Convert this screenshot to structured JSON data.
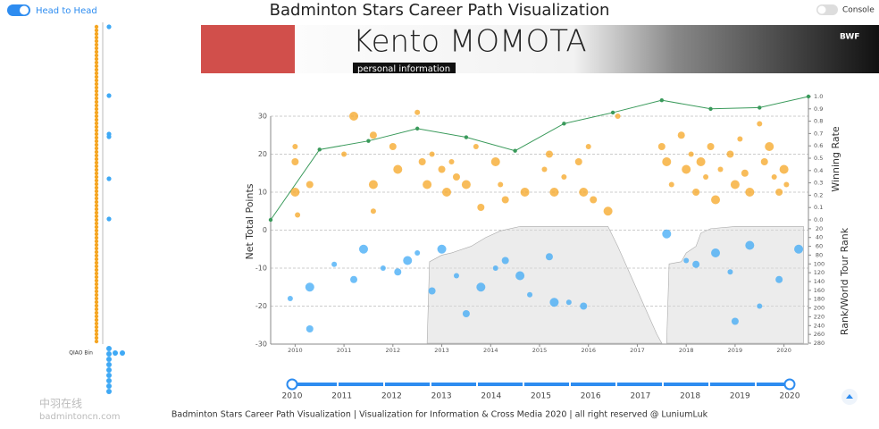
{
  "header": {
    "toggle_left": "Head to Head",
    "title": "Badminton Stars Career Path Visualization",
    "toggle_right": "Console"
  },
  "banner": {
    "name": "Kento MOMOTA",
    "tab": "personal information",
    "logo": "BWF"
  },
  "sidebar": {
    "selected": "QIAO Bin"
  },
  "chart_data": {
    "type": "scatter",
    "ylabel": "Net Total Points",
    "y2label": "Winning Rate",
    "y3label": "Rank/World Tour Rank",
    "xlim": [
      2009.5,
      2020.5
    ],
    "xticks": [
      2010,
      2011,
      2012,
      2013,
      2014,
      2015,
      2016,
      2017,
      2018,
      2019,
      2020
    ],
    "ylim": [
      -30,
      30
    ],
    "yticks": [
      -30,
      -20,
      -10,
      0,
      10,
      20,
      30
    ],
    "y2lim": [
      0,
      1
    ],
    "y2ticks": [
      {
        "value": 0,
        "label": "0.0"
      },
      {
        "value": 0.1,
        "label": "0.1"
      },
      {
        "value": 0.2,
        "label": "0.2"
      },
      {
        "value": 0.3,
        "label": "0.3"
      },
      {
        "value": 0.4,
        "label": "0.4"
      },
      {
        "value": 0.5,
        "label": "0.5"
      },
      {
        "value": 0.6,
        "label": "0.6"
      },
      {
        "value": 0.7,
        "label": "0.7"
      },
      {
        "value": 0.8,
        "label": "0.8"
      },
      {
        "value": 0.9,
        "label": "0.9"
      },
      {
        "value": 1,
        "label": "1.0"
      }
    ],
    "y3lim": [
      0,
      280
    ],
    "y3ticks": [
      20,
      40,
      60,
      80,
      100,
      120,
      140,
      160,
      180,
      200,
      220,
      240,
      260,
      280
    ],
    "grid": true,
    "series": [
      {
        "type": "scatter",
        "color": "#f5a623",
        "x": [
          2010.0,
          2010.0,
          2010.0,
          2010.05,
          2010.3,
          2011.2,
          2011.0,
          2011.6,
          2011.6,
          2011.6,
          2012.0,
          2012.1,
          2012.5,
          2012.6,
          2012.7,
          2012.8,
          2013.0,
          2013.1,
          2013.2,
          2013.3,
          2013.5,
          2013.7,
          2013.8,
          2014.1,
          2014.2,
          2014.3,
          2014.7,
          2015.1,
          2015.2,
          2015.3,
          2015.5,
          2015.8,
          2015.9,
          2016.0,
          2016.1,
          2016.4,
          2016.6,
          2017.5,
          2017.6,
          2017.7,
          2017.9,
          2018.0,
          2018.1,
          2018.2,
          2018.3,
          2018.4,
          2018.5,
          2018.6,
          2018.7,
          2018.9,
          2019.0,
          2019.1,
          2019.2,
          2019.3,
          2019.5,
          2019.6,
          2019.7,
          2019.8,
          2019.9,
          2020.0,
          2020.05
        ],
        "values": [
          22,
          18,
          10,
          4,
          12,
          30,
          20,
          25,
          12,
          5,
          22,
          16,
          31,
          18,
          12,
          20,
          16,
          10,
          18,
          14,
          12,
          22,
          6,
          18,
          12,
          8,
          10,
          16,
          20,
          10,
          14,
          18,
          10,
          22,
          8,
          5,
          30,
          22,
          18,
          12,
          25,
          16,
          20,
          10,
          18,
          14,
          22,
          8,
          16,
          20,
          12,
          24,
          15,
          10,
          28,
          18,
          22,
          14,
          10,
          16,
          12
        ]
      },
      {
        "type": "scatter",
        "color": "#3fa9f5",
        "x": [
          2009.9,
          2010.3,
          2010.3,
          2010.8,
          2011.2,
          2011.4,
          2011.8,
          2012.1,
          2012.3,
          2012.5,
          2012.8,
          2013.0,
          2013.3,
          2013.5,
          2013.8,
          2014.1,
          2014.3,
          2014.6,
          2014.8,
          2015.2,
          2015.3,
          2015.6,
          2015.9,
          2017.6,
          2018.0,
          2018.2,
          2018.6,
          2018.9,
          2019.0,
          2019.3,
          2019.5,
          2019.9,
          2020.3
        ],
        "values": [
          -18,
          -26,
          -15,
          -9,
          -13,
          -5,
          -10,
          -11,
          -8,
          -6,
          -16,
          -5,
          -12,
          -22,
          -15,
          -10,
          -8,
          -12,
          -17,
          -7,
          -19,
          -19,
          -20,
          -1,
          -8,
          -9,
          -6,
          -11,
          -24,
          -4,
          -20,
          -13,
          -5
        ]
      },
      {
        "type": "line",
        "axis": "y2",
        "color": "#3a9a5b",
        "x": [
          2009.5,
          2010.5,
          2011.5,
          2012.5,
          2013.5,
          2014.5,
          2015.5,
          2016.5,
          2017.5,
          2018.5,
          2019.5,
          2020.5
        ],
        "values": [
          0,
          0.57,
          0.64,
          0.74,
          0.67,
          0.56,
          0.78,
          0.87,
          0.97,
          0.9,
          0.91,
          1
        ]
      },
      {
        "type": "area",
        "axis": "y3",
        "color": "#d9d9d9",
        "x": [
          2012.7,
          2012.75,
          2013.0,
          2013.2,
          2013.6,
          2013.9,
          2014.2,
          2014.6,
          2016.4,
          2016.6,
          2017.4,
          2017.5,
          2017.55,
          2017.6,
          2017.65,
          2017.9,
          2018.0,
          2018.2,
          2018.3,
          2018.5,
          2019.0,
          2020.4
        ],
        "values": [
          280,
          95,
          80,
          75,
          60,
          40,
          25,
          15,
          15,
          60,
          260,
          280,
          null,
          280,
          100,
          95,
          75,
          60,
          30,
          20,
          15,
          15
        ]
      }
    ]
  },
  "timeline": {
    "years": [
      2010,
      2011,
      2012,
      2013,
      2014,
      2015,
      2016,
      2017,
      2018,
      2019,
      2020
    ]
  },
  "footer": {
    "text": "Badminton Stars Career Path Visualization | Visualization for Information & Cross Media 2020 | all right reserved @ LuniumLuk"
  },
  "watermark": {
    "cn": "中羽在线",
    "url": "badmintoncn.com"
  }
}
